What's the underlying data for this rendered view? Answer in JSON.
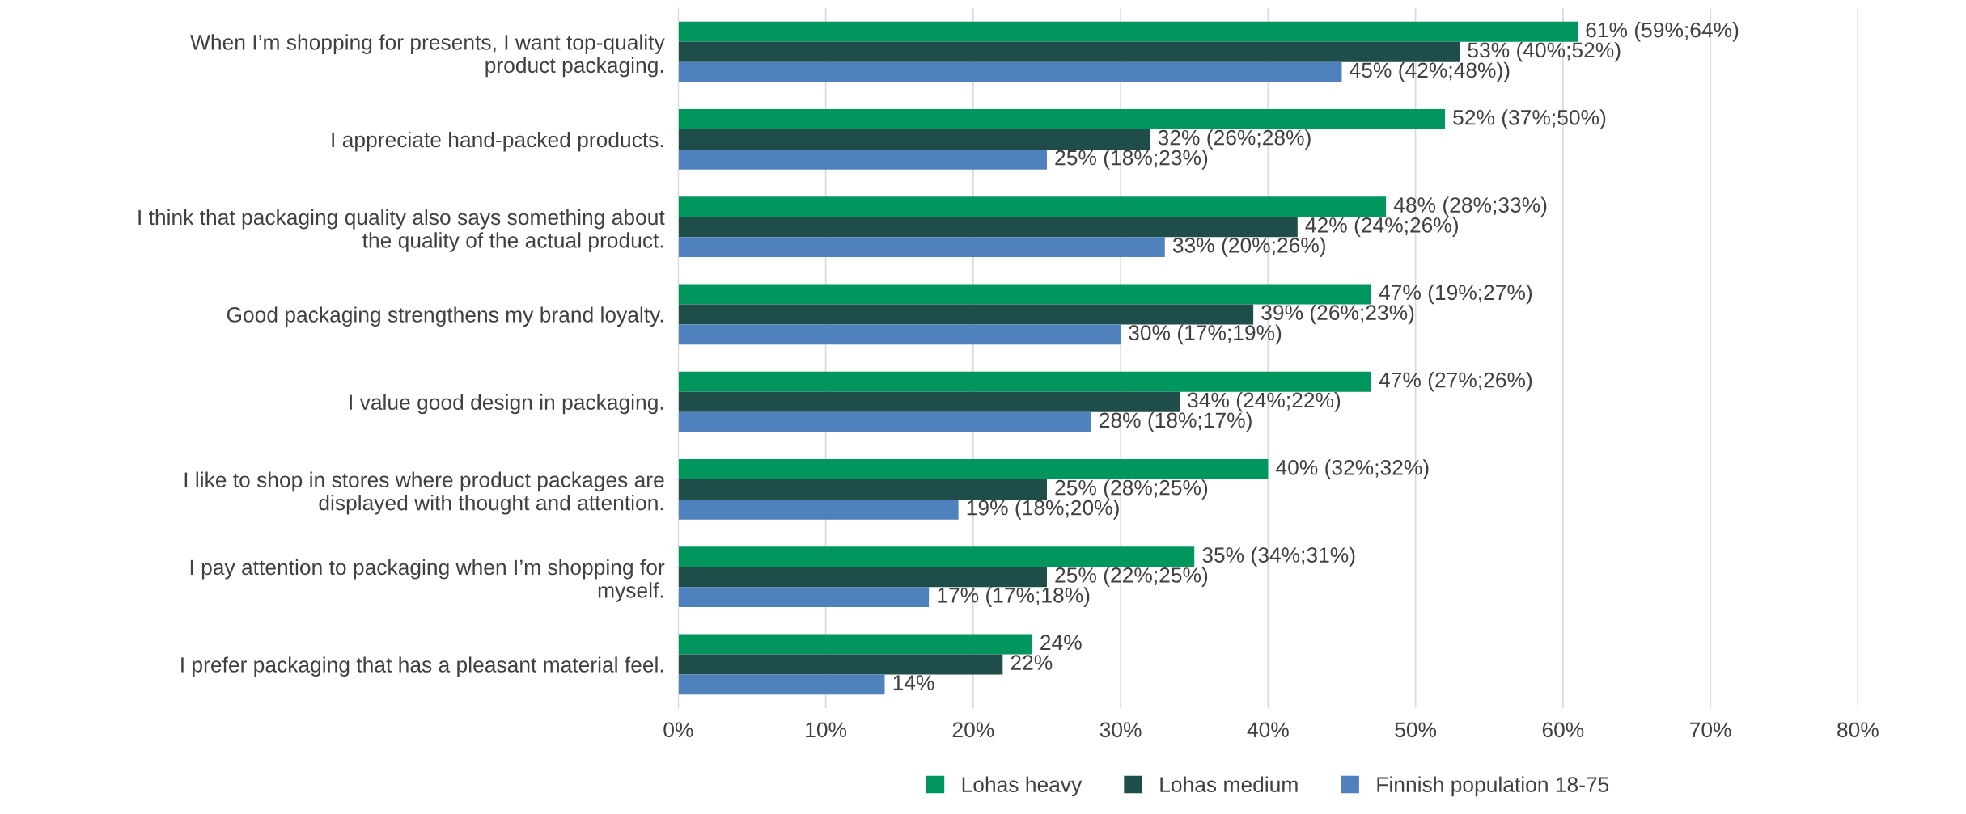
{
  "chart_data": {
    "type": "bar",
    "orientation": "horizontal",
    "categories": [
      "When I’m shopping for presents, I want top-quality\nproduct packaging.",
      "I appreciate hand-packed products.",
      "I think that packaging quality also says something about\nthe quality of the actual product.",
      "Good packaging strengthens my brand loyalty.",
      "I value good design in packaging.",
      "I like to shop in stores where product packages are\ndisplayed with thought and attention.",
      "I pay attention to packaging when I’m shopping for\nmyself.",
      "I prefer packaging that has a pleasant material feel."
    ],
    "series": [
      {
        "name": "Lohas heavy",
        "color": "#00965e",
        "values": [
          61,
          52,
          48,
          47,
          47,
          40,
          35,
          24
        ],
        "value_labels": [
          "61% (59%;64%)",
          "52% (37%;50%)",
          "48% (28%;33%)",
          "47% (19%;27%)",
          "47% (27%;26%)",
          "40% (32%;32%)",
          "35% (34%;31%)",
          "24%"
        ]
      },
      {
        "name": "Lohas medium",
        "color": "#1e4d4a",
        "values": [
          53,
          32,
          42,
          39,
          34,
          25,
          25,
          22
        ],
        "value_labels": [
          "53% (40%;52%)",
          "32% (26%;28%)",
          "42% (24%;26%)",
          "39% (26%;23%)",
          "34% (24%;22%)",
          "25% (28%;25%)",
          "25% (22%;25%)",
          "22%"
        ]
      },
      {
        "name": "Finnish population 18-75",
        "color": "#4f81bd",
        "values": [
          45,
          25,
          33,
          30,
          28,
          19,
          17,
          14
        ],
        "value_labels": [
          "45% (42%;48%))",
          "25% (18%;23%)",
          "33% (20%;26%)",
          "30% (17%;19%)",
          "28% (18%;17%)",
          "19% (18%;20%)",
          "17% (17%;18%)",
          "14%"
        ]
      }
    ],
    "xlim": [
      0,
      80
    ],
    "xticks": [
      {
        "value": 0,
        "label": "0%"
      },
      {
        "value": 10,
        "label": "10%"
      },
      {
        "value": 20,
        "label": "20%"
      },
      {
        "value": 30,
        "label": "30%"
      },
      {
        "value": 40,
        "label": "40%"
      },
      {
        "value": 50,
        "label": "50%"
      },
      {
        "value": 60,
        "label": "60%"
      },
      {
        "value": 70,
        "label": "70%"
      },
      {
        "value": 80,
        "label": "80%"
      }
    ],
    "grid": "x",
    "legend": "bottom"
  }
}
